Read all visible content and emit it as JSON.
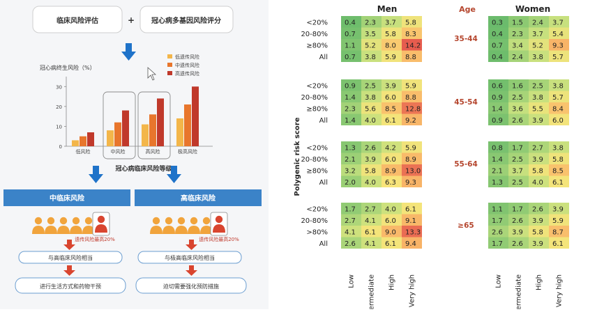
{
  "infographic": {
    "top_box_left": "临床风险评估",
    "plus": "+",
    "top_box_right": "冠心病多基因风险评分",
    "ylabel": "冠心病终生风险（%）",
    "legend": [
      "低遗传风险",
      "中遗传风险",
      "高遗传风险"
    ],
    "yticks": [
      "0",
      "10",
      "20",
      "30"
    ],
    "categories": [
      "低风险",
      "中风险",
      "高风险",
      "极高风险"
    ],
    "xlabel": "冠心病临床风险等级",
    "mid_header": "中临床风险",
    "high_header": "高临床风险",
    "mid_note": "遗传风险最高20%",
    "high_note": "遗传风险最高20%",
    "mid_box1": "与高临床风险相当",
    "high_box1": "与极高临床风险相当",
    "mid_box2": "进行生活方式和药物干预",
    "high_box2": "迫切需要强化预防措施",
    "colors": {
      "low": "#f3b64a",
      "mid": "#e8762c",
      "high": "#c0392b",
      "blue": "#3b83c8",
      "arrow": "#1f73c9"
    }
  },
  "chart_data": [
    {
      "type": "bar",
      "title": "",
      "ylabel": "冠心病终生风险（%）",
      "xlabel": "冠心病临床风险等级",
      "categories": [
        "低风险",
        "中风险",
        "高风险",
        "极高风险"
      ],
      "ylim": [
        0,
        35
      ],
      "series": [
        {
          "name": "低遗传风险",
          "values": [
            3,
            8,
            11,
            14
          ]
        },
        {
          "name": "中遗传风险",
          "values": [
            5,
            12,
            16,
            21
          ]
        },
        {
          "name": "高遗传风险",
          "values": [
            7,
            18,
            24,
            30
          ]
        }
      ]
    },
    {
      "type": "heatmap",
      "ylabel": "Polygenic risk score",
      "age_header": "Age",
      "panels": [
        {
          "name": "Men",
          "columns": [
            "Low",
            "Intermediate",
            "High",
            "Very high"
          ]
        },
        {
          "name": "Women",
          "columns": [
            "Low",
            "Intermediate",
            "High",
            "Very high"
          ]
        }
      ],
      "groups": [
        {
          "age": "35-44",
          "rows": [
            "<20%",
            "20-80%",
            "≥80%",
            "All"
          ],
          "men": [
            [
              "0.4",
              "2.3",
              "3.7",
              "5.8"
            ],
            [
              "0.7",
              "3.5",
              "5.8",
              "8.3"
            ],
            [
              "1.1",
              "5.2",
              "8.0",
              "14.2"
            ],
            [
              "0.7",
              "3.8",
              "5.9",
              "8.8"
            ]
          ],
          "women": [
            [
              "0.3",
              "1.5",
              "2.4",
              "3.7"
            ],
            [
              "0.4",
              "2.3",
              "3.7",
              "5.4"
            ],
            [
              "0.7",
              "3.4",
              "5.2",
              "9.3"
            ],
            [
              "0.4",
              "2.4",
              "3.8",
              "5.7"
            ]
          ]
        },
        {
          "age": "45-54",
          "rows": [
            "<20%",
            "20-80%",
            "≥80%",
            "All"
          ],
          "men": [
            [
              "0.9",
              "2.5",
              "3.9",
              "5.9"
            ],
            [
              "1.4",
              "3.8",
              "6.0",
              "8.8"
            ],
            [
              "2.3",
              "5.6",
              "8.5",
              "12.8"
            ],
            [
              "1.4",
              "4.0",
              "6.1",
              "9.2"
            ]
          ],
          "women": [
            [
              "0.6",
              "1.6",
              "2.5",
              "3.8"
            ],
            [
              "0.9",
              "2.5",
              "3.8",
              "5.7"
            ],
            [
              "1.4",
              "3.6",
              "5.5",
              "8.4"
            ],
            [
              "0.9",
              "2.6",
              "3.9",
              "6.0"
            ]
          ]
        },
        {
          "age": "55-64",
          "rows": [
            "<20%",
            "20-80%",
            "≥80%",
            "All"
          ],
          "men": [
            [
              "1.3",
              "2.6",
              "4.2",
              "5.9"
            ],
            [
              "2.1",
              "3.9",
              "6.0",
              "8.9"
            ],
            [
              "3.2",
              "5.8",
              "8.9",
              "13.0"
            ],
            [
              "2.0",
              "4.0",
              "6.3",
              "9.3"
            ]
          ],
          "women": [
            [
              "0.8",
              "1.7",
              "2.7",
              "3.8"
            ],
            [
              "1.4",
              "2.5",
              "3.9",
              "5.8"
            ],
            [
              "2.1",
              "3.7",
              "5.8",
              "8.5"
            ],
            [
              "1.3",
              "2.5",
              "4.0",
              "6.1"
            ]
          ]
        },
        {
          "age": "≥65",
          "rows": [
            "<20%",
            "20-80%",
            ">80%",
            "All"
          ],
          "men": [
            [
              "1.7",
              "2.7",
              "4.0",
              "6.1"
            ],
            [
              "2.7",
              "4.1",
              "6.0",
              "9.1"
            ],
            [
              "4.1",
              "6.1",
              "9.0",
              "13.3"
            ],
            [
              "2.6",
              "4.1",
              "6.1",
              "9.4"
            ]
          ],
          "women": [
            [
              "1.1",
              "1.7",
              "2.6",
              "3.9"
            ],
            [
              "1.7",
              "2.6",
              "3.9",
              "5.9"
            ],
            [
              "2.6",
              "3.9",
              "5.8",
              "8.7"
            ],
            [
              "1.7",
              "2.6",
              "3.9",
              "6.1"
            ]
          ]
        }
      ]
    }
  ]
}
